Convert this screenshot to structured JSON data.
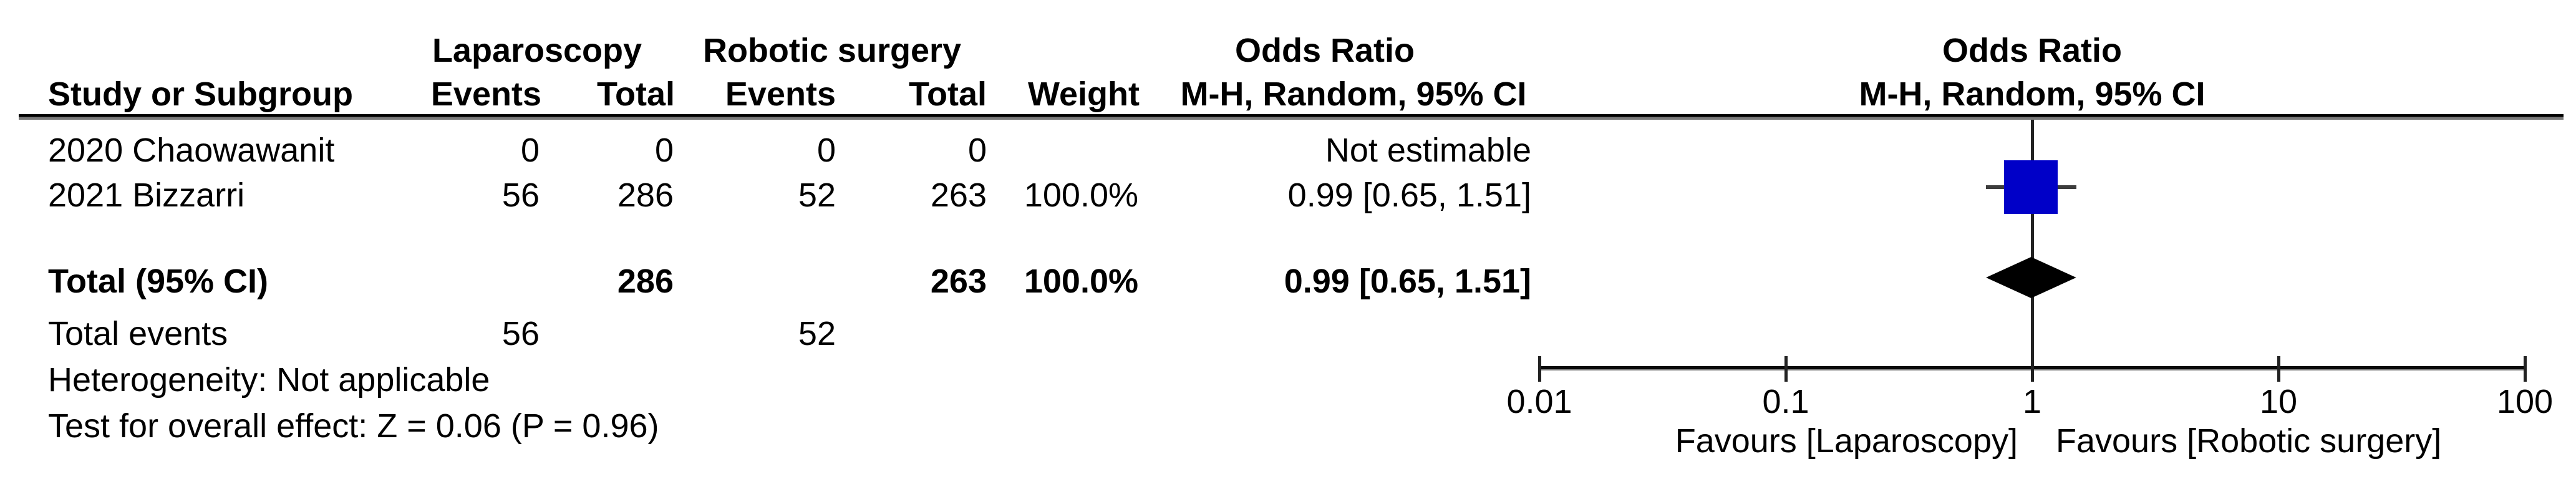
{
  "colors": {
    "marker_blue": "#0000C8",
    "diamond_black": "#000000",
    "text": "#000000"
  },
  "table": {
    "group_headers": {
      "laparoscopy": "Laparoscopy",
      "robotic": "Robotic surgery",
      "odds_ratio_text": "Odds Ratio",
      "odds_ratio_plot": "Odds Ratio"
    },
    "column_headers": {
      "study": "Study or Subgroup",
      "events_l": "Events",
      "total_l": "Total",
      "events_r": "Events",
      "total_r": "Total",
      "weight": "Weight",
      "ci_text": "M-H, Random, 95% CI",
      "ci_plot": "M-H, Random, 95% CI"
    },
    "rows": [
      {
        "study": "2020 Chaowawanit",
        "events_l": "0",
        "total_l": "0",
        "events_r": "0",
        "total_r": "0",
        "weight": "",
        "or_ci": "Not estimable"
      },
      {
        "study": "2021 Bizzarri",
        "events_l": "56",
        "total_l": "286",
        "events_r": "52",
        "total_r": "263",
        "weight": "100.0%",
        "or_ci": "0.99 [0.65, 1.51]"
      }
    ],
    "total_row": {
      "study": "Total (95% CI)",
      "total_l": "286",
      "total_r": "263",
      "weight": "100.0%",
      "or_ci": "0.99 [0.65, 1.51]"
    },
    "total_events": {
      "label": "Total events",
      "events_l": "56",
      "events_r": "52"
    },
    "heterogeneity": "Heterogeneity: Not applicable",
    "overall_effect": "Test for overall effect: Z = 0.06 (P = 0.96)"
  },
  "chart_data": {
    "type": "forest",
    "effect_measure": "Odds Ratio",
    "method": "M-H, Random, 95% CI",
    "x_axis": {
      "scale": "log",
      "ticks": [
        0.01,
        0.1,
        1,
        10,
        100
      ],
      "labels": [
        "0.01",
        "0.1",
        "1",
        "10",
        "100"
      ]
    },
    "studies": [
      {
        "name": "2020 Chaowawanit",
        "events_exp": 0,
        "total_exp": 0,
        "events_ctrl": 0,
        "total_ctrl": 0,
        "weight_pct": null,
        "or": null,
        "ci_low": null,
        "ci_high": null,
        "note": "Not estimable"
      },
      {
        "name": "2021 Bizzarri",
        "events_exp": 56,
        "total_exp": 286,
        "events_ctrl": 52,
        "total_ctrl": 263,
        "weight_pct": 100.0,
        "or": 0.99,
        "ci_low": 0.65,
        "ci_high": 1.51
      }
    ],
    "total": {
      "total_exp": 286,
      "total_ctrl": 263,
      "weight_pct": 100.0,
      "or": 0.99,
      "ci_low": 0.65,
      "ci_high": 1.51,
      "z": 0.06,
      "p": 0.96
    },
    "favours_left": "Favours [Laparoscopy]",
    "favours_right": "Favours [Robotic surgery]"
  }
}
